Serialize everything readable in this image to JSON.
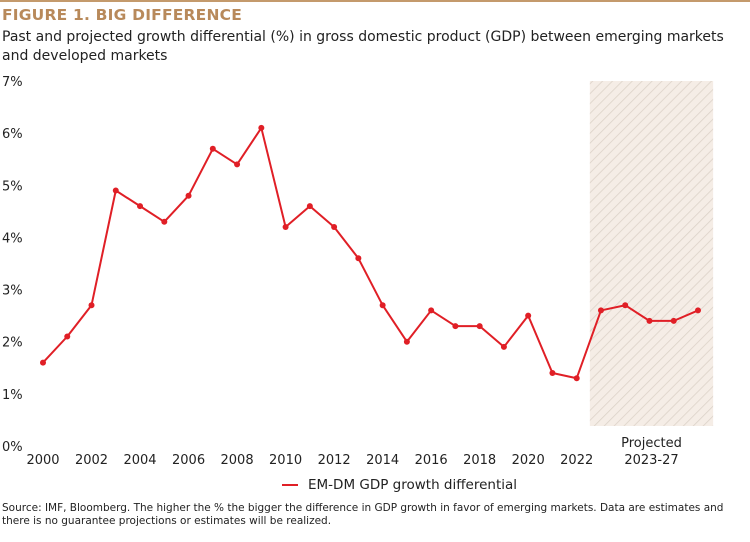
{
  "figure": {
    "title": "FIGURE 1. BIG DIFFERENCE",
    "subtitle": "Past and projected growth differential (%) in gross domestic product (GDP) between emerging markets and developed markets",
    "source": "Source: IMF, Bloomberg. The higher the % the bigger the difference in GDP growth in favor of emerging markets. Data are estimates and there is no guarantee projections or estimates will be realized."
  },
  "colors": {
    "accent": "#b8895a",
    "rule": "#c49a6c",
    "series": "#e01f26",
    "projection_fill": "#f5ede6",
    "projection_hatch": "#dcd2c8"
  },
  "chart_data": {
    "type": "line",
    "title": "FIGURE 1. BIG DIFFERENCE",
    "xlabel": "",
    "ylabel": "",
    "ylim": [
      0,
      7
    ],
    "xlim": [
      2000,
      2027
    ],
    "y_ticks": [
      0,
      1,
      2,
      3,
      4,
      5,
      6,
      7
    ],
    "y_tick_labels": [
      "0%",
      "1%",
      "2%",
      "3%",
      "4%",
      "5%",
      "6%",
      "7%"
    ],
    "x_ticks": [
      2000,
      2002,
      2004,
      2006,
      2008,
      2010,
      2012,
      2014,
      2016,
      2018,
      2020,
      2022
    ],
    "x_tick_labels": [
      "2000",
      "2002",
      "2004",
      "2006",
      "2008",
      "2010",
      "2012",
      "2014",
      "2016",
      "2018",
      "2020",
      "2022"
    ],
    "grid": false,
    "legend_position": "bottom-center",
    "annotations": [
      {
        "type": "shaded-region",
        "x_range": [
          2022.5,
          2027.5
        ],
        "label_line1": "Projected",
        "label_line2": "2023-27"
      }
    ],
    "x": [
      2000,
      2001,
      2002,
      2003,
      2004,
      2005,
      2006,
      2007,
      2008,
      2009,
      2010,
      2011,
      2012,
      2013,
      2014,
      2015,
      2016,
      2017,
      2018,
      2019,
      2020,
      2021,
      2022,
      2023,
      2024,
      2025,
      2026,
      2027
    ],
    "series": [
      {
        "name": "EM-DM GDP growth differential",
        "values": [
          1.6,
          2.1,
          2.7,
          4.9,
          4.6,
          4.3,
          4.8,
          5.7,
          5.4,
          6.1,
          4.2,
          4.6,
          4.2,
          3.6,
          2.7,
          2.0,
          2.6,
          2.3,
          2.3,
          1.9,
          2.5,
          1.4,
          1.3,
          2.6,
          2.7,
          2.4,
          2.4,
          2.6
        ]
      }
    ]
  }
}
